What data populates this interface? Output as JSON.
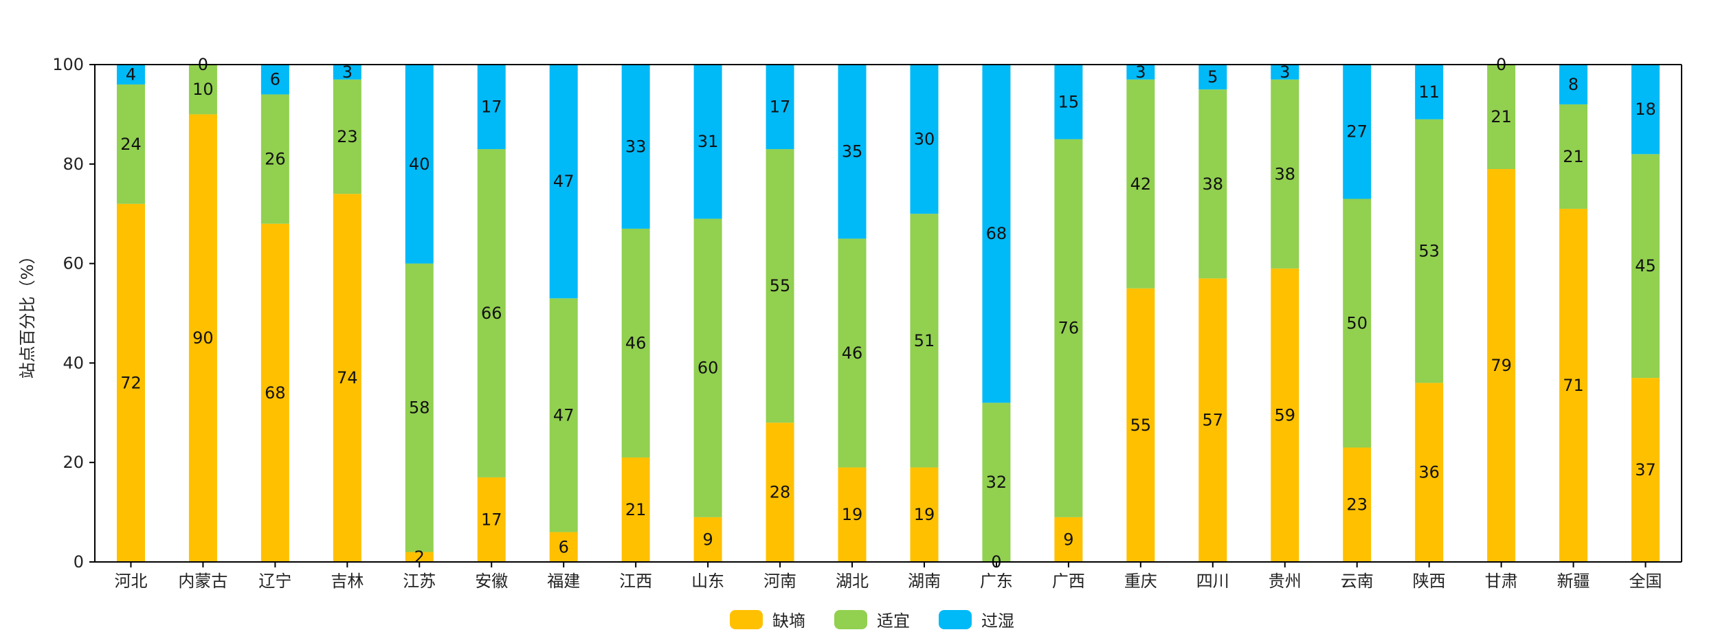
{
  "chart_data": {
    "type": "bar",
    "stacked": true,
    "title": "",
    "xlabel": "",
    "ylabel": "站点百分比（%）",
    "ylim": [
      0,
      100
    ],
    "yticks": [
      0,
      20,
      40,
      60,
      80,
      100
    ],
    "grid": false,
    "legend_position": "bottom-center",
    "categories": [
      "河北",
      "内蒙古",
      "辽宁",
      "吉林",
      "江苏",
      "安徽",
      "福建",
      "江西",
      "山东",
      "河南",
      "湖北",
      "湖南",
      "广东",
      "广西",
      "重庆",
      "四川",
      "贵州",
      "云南",
      "陕西",
      "甘肃",
      "新疆",
      "全国"
    ],
    "series": [
      {
        "name": "缺墒",
        "color": "#FFC000",
        "values": [
          72,
          90,
          68,
          74,
          2,
          17,
          6,
          21,
          9,
          28,
          19,
          19,
          0,
          9,
          55,
          57,
          59,
          23,
          36,
          79,
          71,
          37
        ]
      },
      {
        "name": "适宜",
        "color": "#92D050",
        "values": [
          24,
          10,
          26,
          23,
          58,
          66,
          47,
          46,
          60,
          55,
          46,
          51,
          32,
          76,
          42,
          38,
          38,
          50,
          53,
          21,
          21,
          45
        ]
      },
      {
        "name": "过湿",
        "color": "#00B9F7",
        "values": [
          4,
          0,
          6,
          3,
          40,
          17,
          47,
          33,
          31,
          17,
          35,
          30,
          68,
          15,
          3,
          5,
          3,
          27,
          11,
          0,
          8,
          18
        ]
      }
    ]
  }
}
